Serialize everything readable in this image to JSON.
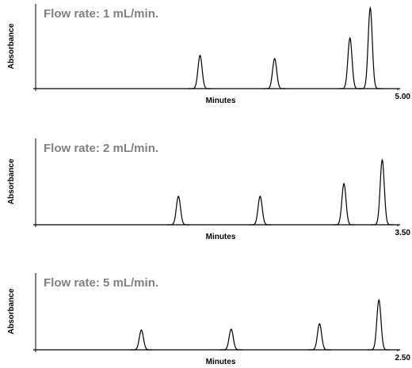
{
  "chart_data": [
    {
      "type": "line",
      "title": "Flow rate:  1 mL/min.",
      "x_label": "Minutes",
      "y_label": "Absorbance",
      "x": [
        2.27,
        3.3,
        4.34,
        4.62
      ],
      "values": [
        42,
        38,
        64,
        102
      ],
      "color": "#000000",
      "xlim": [
        0,
        5
      ],
      "xticks": [
        {
          "value": 5,
          "label": "5.00"
        }
      ],
      "ylim": [
        0,
        105
      ]
    },
    {
      "type": "line",
      "title": "Flow rate:  2 mL/min.",
      "x_label": "Minutes",
      "y_label": "Absorbance",
      "x": [
        1.38,
        2.17,
        2.98,
        3.35
      ],
      "values": [
        36,
        36,
        52,
        82
      ],
      "color": "#000000",
      "xlim": [
        0,
        3.5
      ],
      "xticks": [
        {
          "value": 3.5,
          "label": "3.50"
        }
      ],
      "ylim": [
        0,
        105
      ]
    },
    {
      "type": "line",
      "title": "Flow rate:  5 mL/min.",
      "x_label": "Minutes",
      "y_label": "Absorbance",
      "x": [
        0.73,
        1.35,
        1.96,
        2.37
      ],
      "values": [
        25,
        26,
        33,
        63
      ],
      "color": "#000000",
      "xlim": [
        0,
        2.5
      ],
      "xticks": [
        {
          "value": 2.5,
          "label": "2.50"
        }
      ],
      "ylim": [
        0,
        105
      ]
    }
  ]
}
